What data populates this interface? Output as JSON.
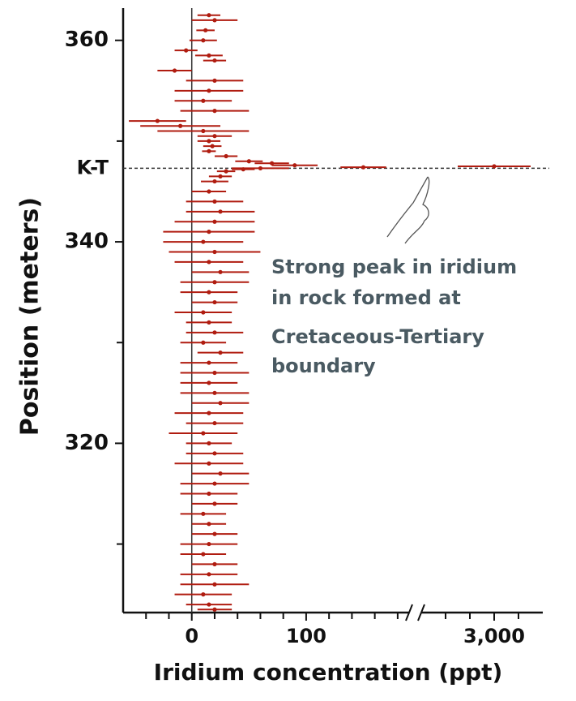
{
  "chart_data": {
    "type": "errorbar",
    "y_label": "Position (meters)",
    "x_label": "Iridium concentration (ppt)",
    "annotation": [
      "Strong peak in iridium",
      "in rock formed at",
      "Cretaceous-Tertiary",
      "boundary"
    ],
    "kt_label": "K-T",
    "kt_position": 347.3,
    "color": "#b01c10",
    "ylim": [
      303.2,
      363.2
    ],
    "yticks": [
      320,
      340,
      360
    ],
    "yminor_ticks": [
      310,
      330,
      350
    ],
    "xlim": [
      -60,
      190
    ],
    "xticks": [
      0,
      100
    ],
    "xminor_ticks": [
      -40,
      -20,
      20,
      40,
      60,
      80,
      120,
      140,
      160,
      180
    ],
    "x2lim": [
      2700,
      3200
    ],
    "x2ticks": [
      {
        "value": 3000,
        "label": "3,000"
      }
    ],
    "x2minor_ticks": [
      2800,
      2900,
      3100
    ],
    "y": [
      362.5,
      362,
      361,
      360,
      359,
      358.5,
      358,
      357,
      356,
      355,
      354,
      353,
      352,
      351.5,
      351,
      350.5,
      350,
      349.5,
      349,
      348.5,
      348,
      347.8,
      347.6,
      347.5,
      347.4,
      347.3,
      347.2,
      347,
      346.5,
      346,
      345,
      344,
      343,
      342,
      341,
      340,
      339,
      338,
      337,
      336,
      335,
      334,
      333,
      332,
      331,
      330,
      329,
      328,
      327,
      326,
      325,
      324,
      323,
      322,
      321,
      320,
      319,
      318,
      317,
      316,
      315,
      314,
      313,
      312,
      311,
      310,
      309,
      308,
      307,
      306,
      305,
      304,
      303.5
    ],
    "x": [
      15,
      20,
      12,
      10,
      -5,
      15,
      20,
      -15,
      20,
      15,
      10,
      20,
      -30,
      -10,
      10,
      20,
      15,
      18,
      15,
      30,
      50,
      70,
      90,
      3000,
      150,
      60,
      45,
      30,
      25,
      20,
      15,
      20,
      25,
      20,
      15,
      10,
      20,
      15,
      25,
      20,
      15,
      20,
      10,
      15,
      20,
      10,
      25,
      15,
      20,
      15,
      20,
      25,
      15,
      20,
      10,
      15,
      20,
      15,
      25,
      20,
      15,
      20,
      10,
      15,
      20,
      15,
      10,
      20,
      15,
      20,
      10,
      15,
      20
    ],
    "error": [
      10,
      20,
      8,
      12,
      10,
      12,
      10,
      15,
      25,
      30,
      25,
      30,
      25,
      35,
      40,
      15,
      10,
      8,
      6,
      10,
      12,
      15,
      20,
      150,
      20,
      25,
      10,
      8,
      10,
      12,
      15,
      25,
      30,
      35,
      40,
      35,
      40,
      30,
      25,
      30,
      25,
      20,
      25,
      20,
      25,
      20,
      20,
      25,
      30,
      25,
      30,
      25,
      30,
      25,
      30,
      20,
      25,
      30,
      25,
      30,
      25,
      20,
      20,
      15,
      20,
      25,
      20,
      20,
      25,
      30,
      25,
      20,
      15
    ]
  }
}
